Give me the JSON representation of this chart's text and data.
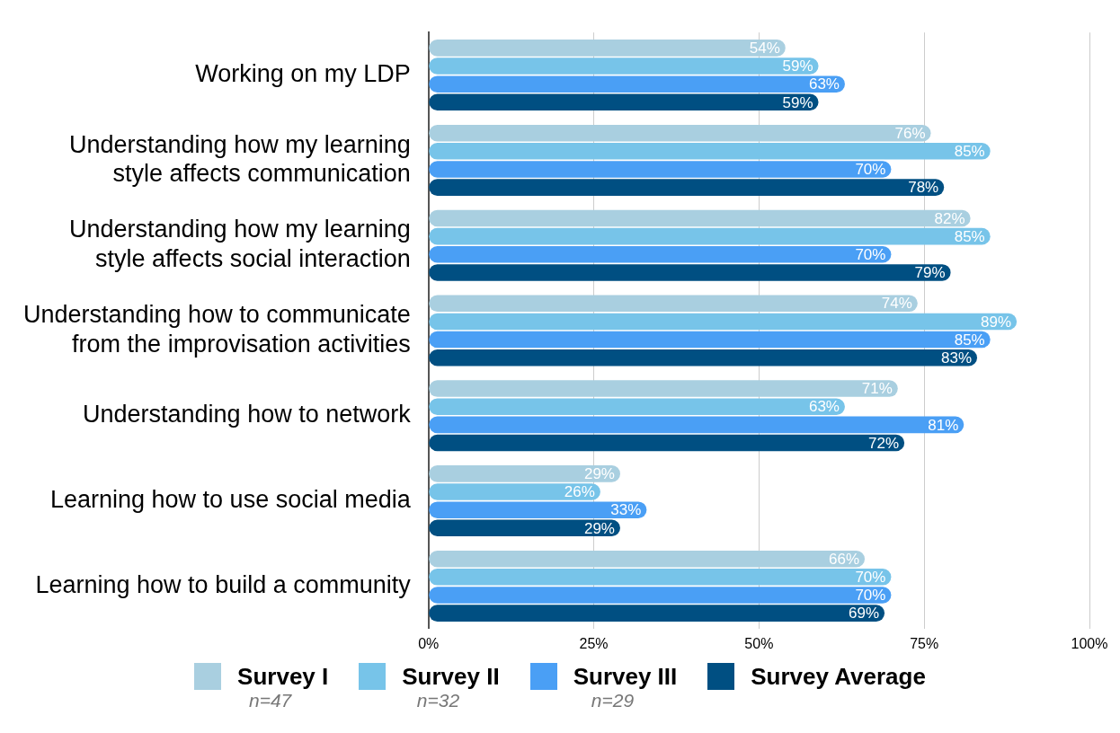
{
  "chart_data": {
    "type": "bar",
    "orientation": "horizontal",
    "categories": [
      "Working on my LDP",
      "Understanding how my learning style affects communication",
      "Understanding how my learning style affects social interaction",
      "Understanding how to communicate from the improvisation activities",
      "Understanding how to network",
      "Learning how to use social media",
      "Learning how to build a community"
    ],
    "series": [
      {
        "name": "Survey I",
        "color": "#a9cfe0",
        "values": [
          54,
          76,
          82,
          74,
          71,
          29,
          66
        ],
        "value_labels": [
          "54%",
          "76%",
          "82%",
          "74%",
          "71%",
          "29%",
          "66%"
        ]
      },
      {
        "name": "Survey II",
        "color": "#77c4e9",
        "values": [
          59,
          85,
          85,
          89,
          63,
          26,
          70
        ],
        "value_labels": [
          "59%",
          "85%",
          "85%",
          "89%",
          "63%",
          "26%",
          "70%"
        ]
      },
      {
        "name": "Survey III",
        "color": "#4a9ff5",
        "values": [
          63,
          70,
          70,
          85,
          81,
          33,
          70
        ],
        "value_labels": [
          "63%",
          "70%",
          "70%",
          "85%",
          "81%",
          "33%",
          "70%"
        ]
      },
      {
        "name": "Survey Average",
        "color": "#004f82",
        "values": [
          59,
          78,
          79,
          83,
          72,
          29,
          69
        ],
        "value_labels": [
          "59%",
          "78%",
          "79%",
          "83%",
          "72%",
          "29%",
          "69%"
        ]
      }
    ],
    "xlim": [
      0,
      100
    ],
    "xticks": [
      {
        "value": 0,
        "label": "0%"
      },
      {
        "value": 25,
        "label": "25%"
      },
      {
        "value": 50,
        "label": "50%"
      },
      {
        "value": 75,
        "label": "75%"
      },
      {
        "value": 100,
        "label": "100%"
      }
    ],
    "grid": "x",
    "legend": "bottom",
    "annotations": [
      "n=47",
      "n=32",
      "n=29"
    ]
  }
}
